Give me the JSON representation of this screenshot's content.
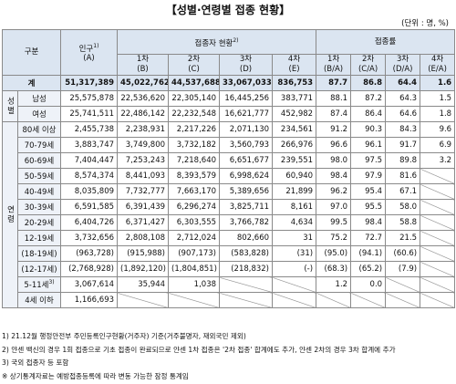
{
  "title": "【성별·연령별 접종 현황】",
  "unit": "(단위 : 명, %)",
  "table": {
    "header": {
      "category": "구분",
      "population": {
        "label": "인구",
        "note": "1)",
        "code": "(A)"
      },
      "vaccinated": {
        "label": "접종자 현황",
        "note": "2)"
      },
      "rate": {
        "label": "접종률"
      },
      "vaccinated_cols": [
        {
          "label": "1차",
          "code": "(B)"
        },
        {
          "label": "2차",
          "code": "(C)"
        },
        {
          "label": "3차",
          "code": "(D)"
        },
        {
          "label": "4차",
          "code": "(E)"
        }
      ],
      "rate_cols": [
        {
          "label": "1차",
          "code": "(B/A)"
        },
        {
          "label": "2차",
          "code": "(C/A)"
        },
        {
          "label": "3차",
          "code": "(D/A)"
        },
        {
          "label": "4차",
          "code": "(E/A)"
        }
      ]
    },
    "rows": [
      {
        "label": "계",
        "cells": [
          "51,317,389",
          "45,022,762",
          "44,537,688",
          "33,067,033",
          "836,753",
          "87.7",
          "86.8",
          "64.4",
          "1.6"
        ]
      },
      {
        "group": "성별",
        "label": "남성",
        "cells": [
          "25,575,878",
          "22,536,620",
          "22,305,140",
          "16,445,256",
          "383,771",
          "88.1",
          "87.2",
          "64.3",
          "1.5"
        ]
      },
      {
        "label": "여성",
        "cells": [
          "25,741,511",
          "22,486,142",
          "22,232,548",
          "16,621,777",
          "452,982",
          "87.4",
          "86.4",
          "64.6",
          "1.8"
        ]
      },
      {
        "group": "연령",
        "label": "80세 이상",
        "cells": [
          "2,455,738",
          "2,238,931",
          "2,217,226",
          "2,071,130",
          "234,561",
          "91.2",
          "90.3",
          "84.3",
          "9.6"
        ]
      },
      {
        "label": "70-79세",
        "cells": [
          "3,883,747",
          "3,749,800",
          "3,732,182",
          "3,560,793",
          "266,976",
          "96.6",
          "96.1",
          "91.7",
          "6.9"
        ]
      },
      {
        "label": "60-69세",
        "cells": [
          "7,404,447",
          "7,253,243",
          "7,218,640",
          "6,651,677",
          "239,551",
          "98.0",
          "97.5",
          "89.8",
          "3.2"
        ]
      },
      {
        "label": "50-59세",
        "cells": [
          "8,574,374",
          "8,441,093",
          "8,393,579",
          "6,998,624",
          "60,940",
          "98.4",
          "97.9",
          "81.6",
          null
        ]
      },
      {
        "label": "40-49세",
        "cells": [
          "8,035,809",
          "7,732,777",
          "7,663,170",
          "5,389,656",
          "21,899",
          "96.2",
          "95.4",
          "67.1",
          null
        ]
      },
      {
        "label": "30-39세",
        "cells": [
          "6,591,585",
          "6,391,439",
          "6,296,274",
          "3,825,711",
          "8,161",
          "97.0",
          "95.5",
          "58.0",
          null
        ]
      },
      {
        "label": "20-29세",
        "cells": [
          "6,404,726",
          "6,371,427",
          "6,303,555",
          "3,766,782",
          "4,634",
          "99.5",
          "98.4",
          "58.8",
          null
        ]
      },
      {
        "label": "12-19세",
        "cells": [
          "3,732,656",
          "2,808,108",
          "2,712,024",
          "802,660",
          "31",
          "75.2",
          "72.7",
          "21.5",
          null
        ]
      },
      {
        "label": "(18-19세)",
        "cells": [
          "(963,728)",
          "(915,988)",
          "(907,173)",
          "(583,828)",
          "(31)",
          "(95.0)",
          "(94.1)",
          "(60.6)",
          null
        ]
      },
      {
        "label": "(12-17세)",
        "cells": [
          "(2,768,928)",
          "(1,892,120)",
          "(1,804,851)",
          "(218,832)",
          "(-)",
          "(68.3)",
          "(65.2)",
          "(7.9)",
          null
        ]
      },
      {
        "label": "5-11세",
        "note": "3)",
        "cells": [
          "3,067,614",
          "35,944",
          "1,038",
          null,
          null,
          "1.2",
          "0.0",
          null,
          null
        ]
      },
      {
        "label": "4세 이하",
        "cells": [
          "1,166,693",
          null,
          null,
          null,
          null,
          null,
          null,
          null,
          null
        ]
      }
    ]
  },
  "notes": [
    "1) 21.12월 행정안전부 주민등록인구현황(거주자) 기준(거주불명자, 재외국민 제외)",
    "2) 얀센 백신의 경우 1회 접종으로 기초 접종이 완료되므로 얀센 1차 접종은 '2차 접종' 합계에도 추가, 얀센 2차의 경우 3차 합계에 추가",
    "3) 국외 접종자 등 포함",
    "※ 상기통계자료는 예방접종등록에 따라 변동 가능한 잠정 통계임"
  ]
}
